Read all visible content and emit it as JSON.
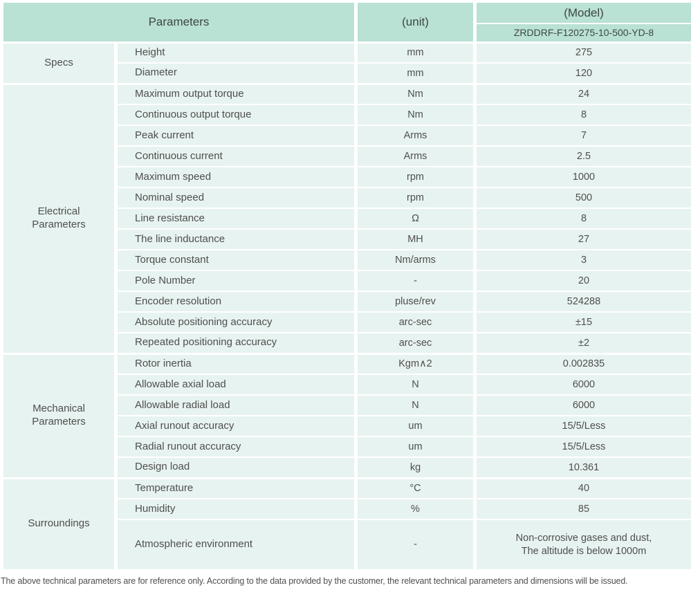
{
  "colors": {
    "header_bg": "#b9e1d4",
    "cell_bg": "#e7f3f0",
    "border": "#ffffff",
    "text": "#4e4e4e"
  },
  "header": {
    "parameters_label": "Parameters",
    "unit_label": "(unit)",
    "model_label": "(Model)",
    "model_value": "ZRDDRF-F120275-10-500-YD-8"
  },
  "groups": [
    {
      "label": "Specs",
      "rows": [
        {
          "name": "Height",
          "unit": "mm",
          "value": "275"
        },
        {
          "name": "Diameter",
          "unit": "mm",
          "value": "120"
        }
      ]
    },
    {
      "label": "Electrical\nParameters",
      "rows": [
        {
          "name": "Maximum output torque",
          "unit": "Nm",
          "value": "24"
        },
        {
          "name": "Continuous output torque",
          "unit": "Nm",
          "value": "8"
        },
        {
          "name": "Peak current",
          "unit": "Arms",
          "value": "7"
        },
        {
          "name": "Continuous current",
          "unit": "Arms",
          "value": "2.5"
        },
        {
          "name": "Maximum speed",
          "unit": "rpm",
          "value": "1000"
        },
        {
          "name": "Nominal speed",
          "unit": "rpm",
          "value": "500"
        },
        {
          "name": "Line resistance",
          "unit": "Ω",
          "value": "8"
        },
        {
          "name": "The line inductance",
          "unit": "MH",
          "value": "27"
        },
        {
          "name": "Torque constant",
          "unit": "Nm/arms",
          "value": "3"
        },
        {
          "name": "Pole Number",
          "unit": "-",
          "value": "20"
        },
        {
          "name": "Encoder resolution",
          "unit": "pluse/rev",
          "value": "524288"
        },
        {
          "name": "Absolute positioning accuracy",
          "unit": "arc-sec",
          "value": "±15"
        },
        {
          "name": "Repeated positioning accuracy",
          "unit": "arc-sec",
          "value": "±2"
        }
      ]
    },
    {
      "label": "Mechanical\nParameters",
      "rows": [
        {
          "name": "Rotor inertia",
          "unit": "Kgm∧2",
          "value": "0.002835"
        },
        {
          "name": "Allowable axial load",
          "unit": "N",
          "value": "6000"
        },
        {
          "name": "Allowable radial load",
          "unit": "N",
          "value": "6000"
        },
        {
          "name": "Axial runout accuracy",
          "unit": "um",
          "value": "15/5/Less"
        },
        {
          "name": "Radial runout accuracy",
          "unit": "um",
          "value": "15/5/Less"
        },
        {
          "name": "Design load",
          "unit": "kg",
          "value": "10.361"
        }
      ]
    },
    {
      "label": "Surroundings",
      "rows": [
        {
          "name": "Temperature",
          "unit": "°C",
          "value": "40"
        },
        {
          "name": "Humidity",
          "unit": "%",
          "value": "85"
        },
        {
          "name": "Atmospheric environment",
          "unit": "-",
          "value": "Non-corrosive gases and dust,\nThe altitude is below 1000m",
          "tall": true
        }
      ]
    }
  ],
  "footer": {
    "note": "The above technical parameters are for reference only. According to the data provided by the customer, the relevant technical parameters and dimensions will be issued."
  }
}
